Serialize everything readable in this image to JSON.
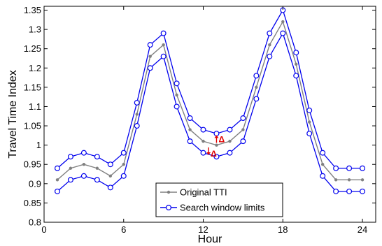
{
  "chart_data": {
    "type": "line",
    "xlabel": "Hour",
    "ylabel": "Travel Time Index",
    "xlim": [
      0,
      25
    ],
    "ylim": [
      0.8,
      1.36
    ],
    "xticks": [
      0,
      6,
      12,
      18,
      24
    ],
    "xtick_labels": [
      "0",
      "6",
      "12",
      "18",
      "24"
    ],
    "yticks": [
      0.8,
      0.85,
      0.9,
      0.95,
      1,
      1.05,
      1.1,
      1.15,
      1.2,
      1.25,
      1.3,
      1.35
    ],
    "ytick_labels": [
      "0.8",
      "0.85",
      "0.9",
      "0.95",
      "1",
      "1.05",
      "1.1",
      "1.15",
      "1.2",
      "1.25",
      "1.3",
      "1.35"
    ],
    "grid": false,
    "legend_position": "bottom-center",
    "x": [
      1,
      2,
      3,
      4,
      5,
      6,
      7,
      8,
      9,
      10,
      11,
      12,
      13,
      14,
      15,
      16,
      17,
      18,
      19,
      20,
      21,
      22,
      23,
      24
    ],
    "series": [
      {
        "name": "Original TTI",
        "color": "#808080",
        "marker": "dot",
        "values": [
          0.91,
          0.94,
          0.95,
          0.94,
          0.92,
          0.95,
          1.08,
          1.23,
          1.26,
          1.13,
          1.04,
          1.01,
          1.0,
          1.01,
          1.04,
          1.15,
          1.26,
          1.32,
          1.21,
          1.06,
          0.95,
          0.91,
          0.91,
          0.91
        ]
      },
      {
        "name": "Search window limits",
        "color": "#0000ee",
        "marker": "circle",
        "values": [
          0.94,
          0.97,
          0.98,
          0.97,
          0.95,
          0.98,
          1.11,
          1.26,
          1.29,
          1.16,
          1.07,
          1.04,
          1.03,
          1.04,
          1.07,
          1.18,
          1.29,
          1.35,
          1.24,
          1.09,
          0.98,
          0.94,
          0.94,
          0.94
        ]
      },
      {
        "name": "",
        "color": "#0000ee",
        "marker": "circle",
        "values": [
          0.88,
          0.91,
          0.92,
          0.91,
          0.89,
          0.92,
          1.05,
          1.2,
          1.23,
          1.1,
          1.01,
          0.98,
          0.97,
          0.98,
          1.01,
          1.12,
          1.23,
          1.29,
          1.18,
          1.03,
          0.92,
          0.88,
          0.88,
          0.88
        ]
      }
    ],
    "legend": [
      {
        "label": "Original TTI",
        "series": 0
      },
      {
        "label": "Search window limits",
        "series": 1
      }
    ],
    "annotations": [
      {
        "text": "Δ",
        "arrow": "up",
        "x": 13,
        "y": 1.015,
        "color": "#e00000"
      },
      {
        "text": "Δ",
        "arrow": "down",
        "x": 12.4,
        "y": 0.985,
        "color": "#e00000"
      }
    ]
  }
}
